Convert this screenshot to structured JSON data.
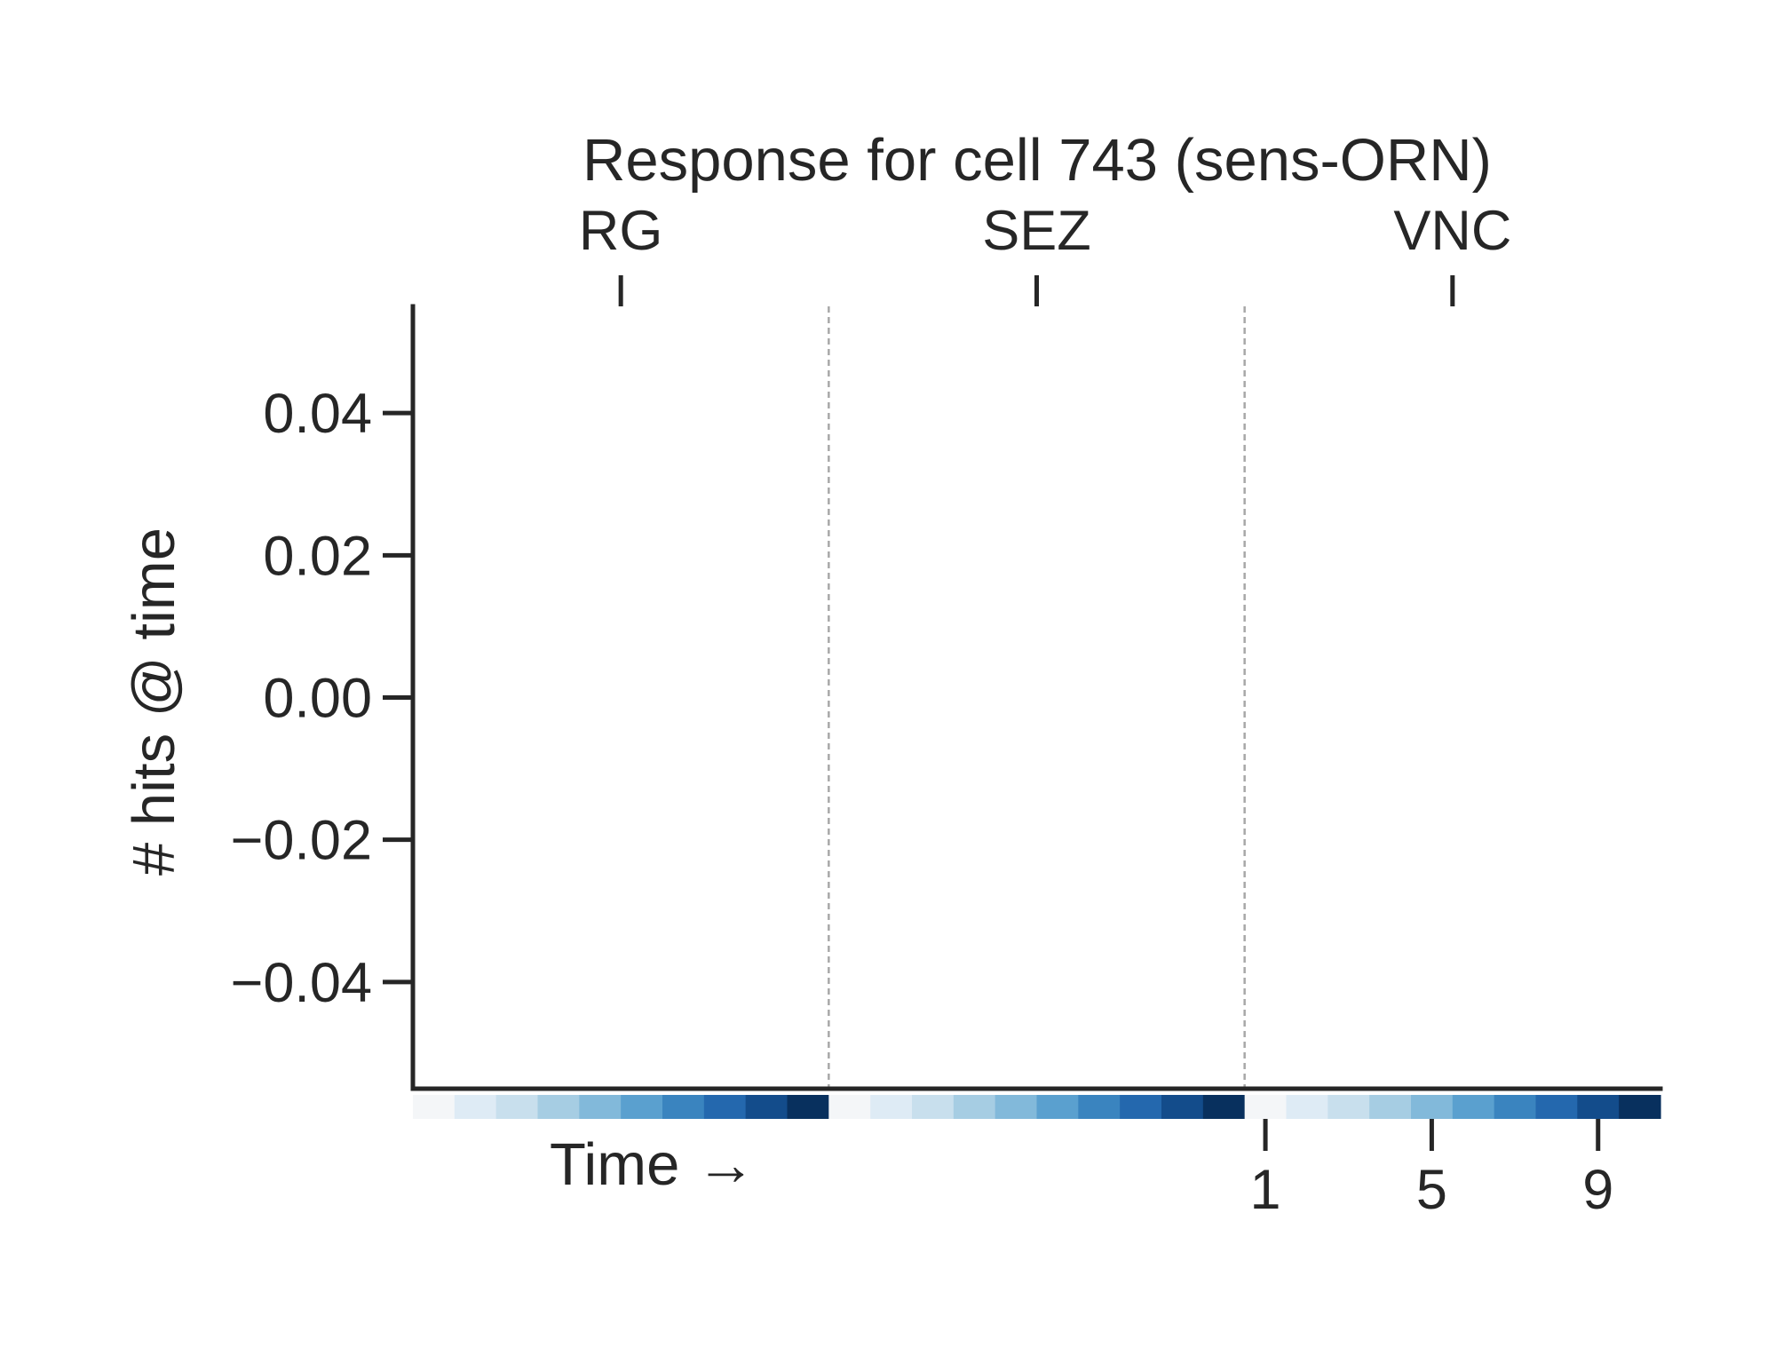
{
  "chart_data": {
    "type": "line",
    "title": "Response for cell 743 (sens-ORN)",
    "xlabel": "Time →",
    "ylabel": "# hits @ time",
    "ylim": [
      -0.055,
      0.055
    ],
    "yticks": [
      "0.04",
      "0.02",
      "0.00",
      "−0.02",
      "−0.04"
    ],
    "ytick_values": [
      0.04,
      0.02,
      0.0,
      -0.02,
      -0.04
    ],
    "xticks": [
      "1",
      "5",
      "9"
    ],
    "xtick_values": [
      1,
      5,
      9
    ],
    "segments": [
      "RG",
      "SEZ",
      "VNC"
    ],
    "steps_per_segment": 10,
    "series": [],
    "grid": false,
    "colorbar_colors": [
      "#f7fbff",
      "#deebf7",
      "#c6dbef",
      "#9ecae1",
      "#6baed6",
      "#4292c6",
      "#2171b5",
      "#08519c",
      "#08306b",
      "#08306b"
    ],
    "time_colors": [
      "#f4f6f8",
      "#deebf5",
      "#c8dfed",
      "#a6cde3",
      "#82b9da",
      "#5aa0cf",
      "#3a84bf",
      "#2468ae",
      "#134c8b",
      "#08305e"
    ],
    "colors": {
      "axis": "#262626",
      "divider": "#a8a8a8"
    }
  }
}
